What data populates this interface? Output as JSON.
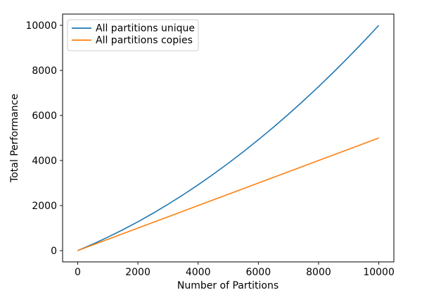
{
  "figure": {
    "background": "#ffffff",
    "frame_color": "#000000",
    "text_color": "#000000"
  },
  "chart_data": {
    "type": "line",
    "title": "",
    "xlabel": "Number of Partitions",
    "ylabel": "Total Performance",
    "xlim": [
      -500,
      10500
    ],
    "ylim": [
      -500,
      10500
    ],
    "xticks": [
      0,
      2000,
      4000,
      6000,
      8000,
      10000
    ],
    "yticks": [
      0,
      2000,
      4000,
      6000,
      8000,
      10000
    ],
    "grid": false,
    "legend": {
      "position": "upper left",
      "border_color": "#cccccc",
      "background": "#ffffff",
      "opacity": 0.85
    },
    "x": [
      0,
      500,
      1000,
      1500,
      2000,
      2500,
      3000,
      3500,
      4000,
      4500,
      5000,
      5500,
      6000,
      6500,
      7000,
      7500,
      8000,
      8500,
      9000,
      9500,
      10000
    ],
    "series": [
      {
        "name": "All partitions unique",
        "color": "#1f77b4",
        "values": [
          0,
          286,
          595,
          926,
          1280,
          1656,
          2055,
          2476,
          2920,
          3386,
          3875,
          4386,
          4920,
          5476,
          6055,
          6656,
          7280,
          7926,
          8595,
          9286,
          10000
        ]
      },
      {
        "name": "All partitions copies",
        "color": "#ff7f0e",
        "values": [
          0,
          250,
          500,
          750,
          1000,
          1250,
          1500,
          1750,
          2000,
          2250,
          2500,
          2750,
          3000,
          3250,
          3500,
          3750,
          4000,
          4250,
          4500,
          4750,
          5000
        ]
      }
    ]
  }
}
